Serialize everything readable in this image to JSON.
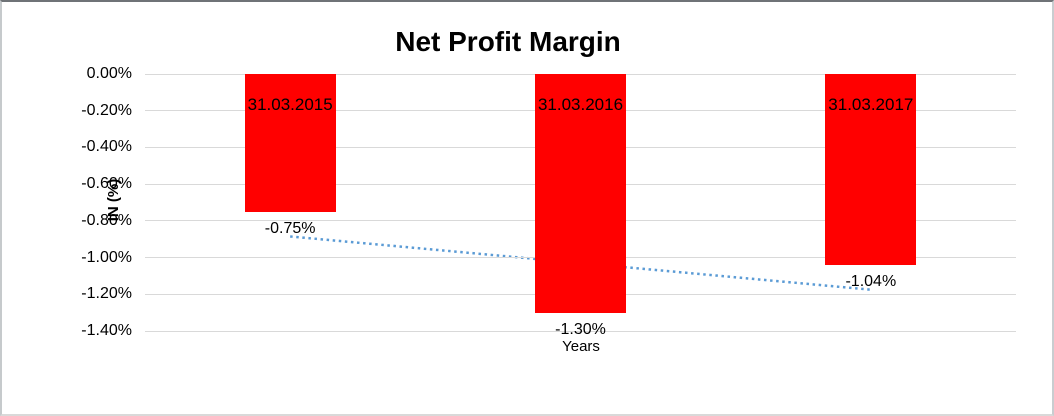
{
  "chart_data": {
    "type": "bar",
    "title": "Net Profit Margin",
    "xlabel": "Years",
    "ylabel": "IN (%)",
    "categories": [
      "31.03.2015",
      "31.03.2016",
      "31.03.2017"
    ],
    "values": [
      -0.75,
      -1.3,
      -1.04
    ],
    "data_labels": [
      "-0.75%",
      "-1.30%",
      "-1.04%"
    ],
    "ytick_labels": [
      "0.00%",
      "-0.20%",
      "-0.40%",
      "-0.60%",
      "-0.80%",
      "-1.00%",
      "-1.20%",
      "-1.40%"
    ],
    "ylim": [
      -1.4,
      0.0
    ],
    "grid": true,
    "legend": false,
    "bar_color": "#FF0000",
    "gridline_color": "#D9D9D9",
    "trendline": {
      "type": "linear",
      "style": "dotted",
      "color": "#5B9BD5",
      "start": -0.885,
      "end": -1.175
    }
  }
}
